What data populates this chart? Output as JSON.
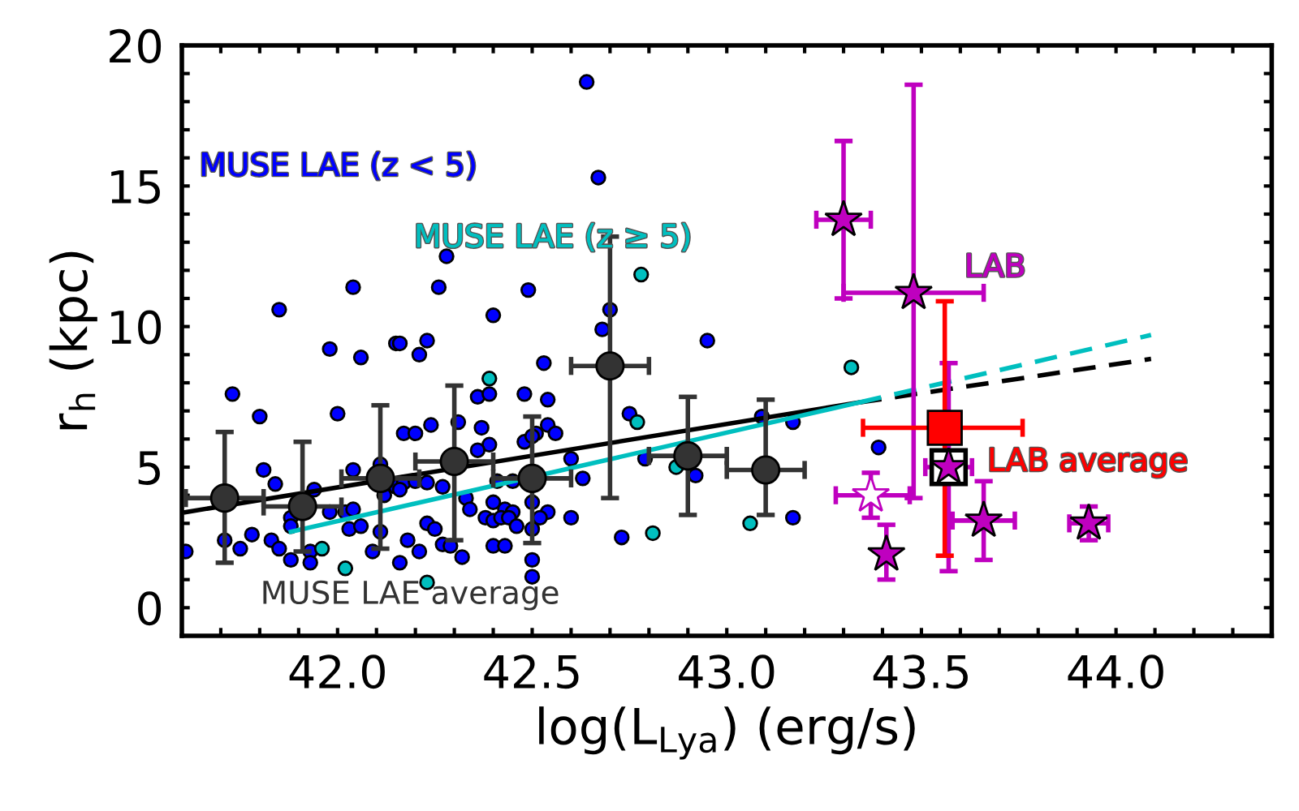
{
  "chart_data": {
    "type": "scatter",
    "xlabel": "log(L$_{Lya}$) (erg/s)",
    "ylabel": "r$_{h}$ (kpc)",
    "xlim": [
      41.6,
      44.4
    ],
    "ylim": [
      -1,
      20
    ],
    "xticks": [
      {
        "value": 41.6,
        "label": null
      },
      {
        "value": 41.7,
        "label": null
      },
      {
        "value": 41.8,
        "label": null
      },
      {
        "value": 41.9,
        "label": null
      },
      {
        "value": 42.0,
        "label": "42.0"
      },
      {
        "value": 42.1,
        "label": null
      },
      {
        "value": 42.2,
        "label": null
      },
      {
        "value": 42.3,
        "label": null
      },
      {
        "value": 42.4,
        "label": null
      },
      {
        "value": 42.5,
        "label": "42.5"
      },
      {
        "value": 42.6,
        "label": null
      },
      {
        "value": 42.7,
        "label": null
      },
      {
        "value": 42.8,
        "label": null
      },
      {
        "value": 42.9,
        "label": null
      },
      {
        "value": 43.0,
        "label": "43.0"
      },
      {
        "value": 43.1,
        "label": null
      },
      {
        "value": 43.2,
        "label": null
      },
      {
        "value": 43.3,
        "label": null
      },
      {
        "value": 43.4,
        "label": null
      },
      {
        "value": 43.5,
        "label": "43.5"
      },
      {
        "value": 43.6,
        "label": null
      },
      {
        "value": 43.7,
        "label": null
      },
      {
        "value": 43.8,
        "label": null
      },
      {
        "value": 43.9,
        "label": null
      },
      {
        "value": 44.0,
        "label": "44.0"
      },
      {
        "value": 44.1,
        "label": null
      },
      {
        "value": 44.2,
        "label": null
      },
      {
        "value": 44.3,
        "label": null
      }
    ],
    "yticks": [
      {
        "value": -1,
        "label": null
      },
      0,
      {
        "value": 1,
        "label": null
      },
      {
        "value": 2,
        "label": null
      },
      {
        "value": 3,
        "label": null
      },
      {
        "value": 4,
        "label": null
      },
      5,
      {
        "value": 6,
        "label": null
      },
      {
        "value": 7,
        "label": null
      },
      {
        "value": 8,
        "label": null
      },
      {
        "value": 9,
        "label": null
      },
      10,
      {
        "value": 11,
        "label": null
      },
      {
        "value": 12,
        "label": null
      },
      {
        "value": 13,
        "label": null
      },
      {
        "value": 14,
        "label": null
      },
      15,
      {
        "value": 16,
        "label": null
      },
      {
        "value": 17,
        "label": null
      },
      {
        "value": 18,
        "label": null
      },
      {
        "value": 19,
        "label": null
      },
      20
    ],
    "grid": false,
    "legend": false,
    "series": [
      {
        "name": "MUSE LAE (z < 5)",
        "marker": "circle",
        "color": "#0000ff",
        "x": [
          42.64,
          42.67,
          42.28,
          42.04,
          42.26,
          42.49,
          41.85,
          42.4,
          42.7,
          42.68,
          42.95,
          41.98,
          42.06,
          42.15,
          42.16,
          42.23,
          42.21,
          41.73,
          41.8,
          42.0,
          42.53,
          42.36,
          42.39,
          42.48,
          42.54,
          42.75,
          42.24,
          42.31,
          42.37,
          42.17,
          42.2,
          42.54,
          42.56,
          42.51,
          42.39,
          42.36,
          42.48,
          42.5,
          42.6,
          42.79,
          41.81,
          42.04,
          42.11,
          41.84,
          42.15,
          42.17,
          42.2,
          42.23,
          42.12,
          42.16,
          41.94,
          42.27,
          42.41,
          42.45,
          42.63,
          42.92,
          42.33,
          42.4,
          42.34,
          42.5,
          42.54,
          42.52,
          42.6,
          42.38,
          42.4,
          42.43,
          42.45,
          42.42,
          42.44,
          42.46,
          41.98,
          42.02,
          42.04,
          41.88,
          41.88,
          42.03,
          42.06,
          42.11,
          42.23,
          42.25,
          42.18,
          42.27,
          42.29,
          42.4,
          42.43,
          42.5,
          42.5,
          42.5,
          42.21,
          42.32,
          42.16,
          42.09,
          41.93,
          41.93,
          41.88,
          41.83,
          41.85,
          41.78,
          41.71,
          41.75,
          41.61,
          42.73,
          43.09,
          43.17,
          43.17,
          43.39
        ],
        "values": [
          18.7,
          15.3,
          12.5,
          11.4,
          11.4,
          11.3,
          10.6,
          10.4,
          10.6,
          9.9,
          9.5,
          9.2,
          8.9,
          9.4,
          9.4,
          9.5,
          9.0,
          7.6,
          6.8,
          6.9,
          8.7,
          7.5,
          7.6,
          7.6,
          7.4,
          6.9,
          6.5,
          6.6,
          6.4,
          6.2,
          6.2,
          6.5,
          6.2,
          6.2,
          5.8,
          5.6,
          5.9,
          6.1,
          5.3,
          5.3,
          4.9,
          4.9,
          5.1,
          4.4,
          4.3,
          4.45,
          4.5,
          4.45,
          4.0,
          4.2,
          4.2,
          4.3,
          4.5,
          4.5,
          4.6,
          4.7,
          3.9,
          3.75,
          3.5,
          3.75,
          3.4,
          3.2,
          3.2,
          3.2,
          3.1,
          3.5,
          3.4,
          3.2,
          3.2,
          2.9,
          3.4,
          3.4,
          3.5,
          3.2,
          2.9,
          2.8,
          2.9,
          2.7,
          3.0,
          2.8,
          2.4,
          2.25,
          2.2,
          2.2,
          2.2,
          2.8,
          1.7,
          1.1,
          2.0,
          1.8,
          1.6,
          2.0,
          2.0,
          1.6,
          1.7,
          2.4,
          2.1,
          2.6,
          2.4,
          2.1,
          2.0,
          2.5,
          6.8,
          6.6,
          3.2,
          5.7
        ]
      },
      {
        "name": "MUSE LAE (z ≥ 5)",
        "marker": "circle",
        "color": "#00bfbf",
        "x": [
          42.78,
          42.39,
          42.77,
          42.87,
          42.81,
          41.96,
          42.02,
          42.23,
          43.32,
          43.06
        ],
        "values": [
          11.85,
          8.15,
          6.6,
          5.0,
          2.65,
          2.1,
          1.4,
          0.9,
          8.55,
          3.0
        ]
      },
      {
        "type": "line",
        "line_style": "solid",
        "color": "#000000",
        "x": [
          41.61,
          43.34
        ],
        "values": [
          3.4,
          7.3
        ]
      },
      {
        "type": "line",
        "line_style": "dashed",
        "color": "#000000",
        "x": [
          43.34,
          44.09
        ],
        "values": [
          7.3,
          8.85
        ]
      },
      {
        "type": "line",
        "line_style": "solid",
        "color": "#00bfbf",
        "x": [
          41.88,
          43.34
        ],
        "values": [
          2.7,
          7.3
        ]
      },
      {
        "type": "line",
        "line_style": "dashed",
        "color": "#00bfbf",
        "x": [
          43.34,
          44.09
        ],
        "values": [
          7.3,
          9.7
        ]
      },
      {
        "name": "MUSE LAE average",
        "marker": "circle",
        "color": "#333333",
        "x": [
          41.71,
          41.91,
          42.11,
          42.3,
          42.5,
          42.7,
          42.9,
          43.1
        ],
        "values": [
          3.9,
          3.6,
          4.6,
          5.2,
          4.6,
          8.6,
          5.4,
          4.9
        ],
        "errors": [
          [
            1.6,
            6.25
          ],
          [
            2.0,
            5.9
          ],
          [
            2.1,
            7.2
          ],
          [
            2.4,
            7.9
          ],
          [
            2.3,
            6.8
          ],
          [
            3.9,
            13.2
          ],
          [
            3.3,
            7.5
          ],
          [
            3.3,
            7.4
          ]
        ],
        "xerrors": [
          [
            41.61,
            41.81
          ],
          [
            41.81,
            42.01
          ],
          [
            42.01,
            42.21
          ],
          [
            42.2,
            42.4
          ],
          [
            42.4,
            42.6
          ],
          [
            42.6,
            42.8
          ],
          [
            42.8,
            43.0
          ],
          [
            43.0,
            43.2
          ]
        ]
      },
      {
        "marker": "square",
        "color": "#000000",
        "colors": [
          "#ffffff"
        ],
        "x": [
          43.57
        ],
        "values": [
          5.0
        ]
      },
      {
        "name": "LAB",
        "marker": "star",
        "color": "#bf00bf",
        "colors": [
          "#bf00bf",
          "#bf00bf",
          "#bf00bf",
          "#bf00bf",
          "#bf00bf",
          "#ffffff",
          "#bf00bf"
        ],
        "x": [
          43.3,
          43.48,
          43.41,
          43.66,
          43.93,
          43.37,
          43.57
        ],
        "values": [
          13.8,
          11.2,
          1.9,
          3.1,
          3.0,
          4.0,
          5.0
        ],
        "errors": [
          [
            11.0,
            16.6
          ],
          [
            3.9,
            18.6
          ],
          [
            1.0,
            2.95
          ],
          [
            1.7,
            4.5
          ],
          [
            2.4,
            3.6
          ],
          [
            3.2,
            4.8
          ],
          [
            1.3,
            8.7
          ]
        ],
        "xerrors": [
          [
            43.23,
            43.37
          ],
          [
            43.3,
            43.66
          ],
          null,
          [
            43.58,
            43.74
          ],
          [
            43.88,
            43.98
          ],
          [
            43.28,
            43.47
          ],
          [
            43.51,
            43.63
          ]
        ]
      },
      {
        "name": "LAB average",
        "marker": "square",
        "color": "#ff0000",
        "x": [
          43.56
        ],
        "values": [
          6.4
        ],
        "errors": [
          [
            1.85,
            10.9
          ]
        ],
        "xerrors": [
          [
            43.35,
            43.76
          ]
        ]
      }
    ]
  }
}
